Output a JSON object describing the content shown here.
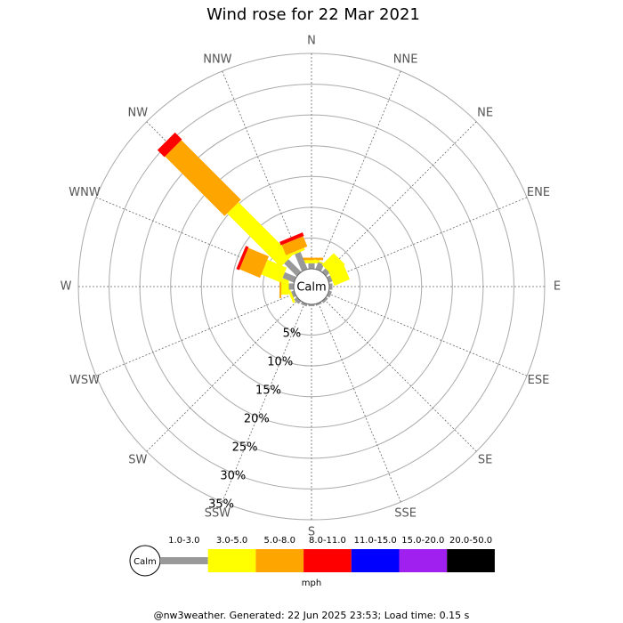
{
  "chart_data": {
    "type": "windrose",
    "title": "Wind rose for 22 Mar 2021",
    "directions": [
      "N",
      "NNE",
      "NE",
      "ENE",
      "E",
      "ESE",
      "SE",
      "SSE",
      "S",
      "SSW",
      "SW",
      "WSW",
      "W",
      "WNW",
      "NW",
      "NNW"
    ],
    "calm_label": "Calm",
    "units": "mph",
    "rlim": [
      0,
      35
    ],
    "rticks": [
      {
        "value": 5,
        "label": "5%"
      },
      {
        "value": 10,
        "label": "10%"
      },
      {
        "value": 15,
        "label": "15%"
      },
      {
        "value": 20,
        "label": "20%"
      },
      {
        "value": 25,
        "label": "25%"
      },
      {
        "value": 30,
        "label": "30%"
      },
      {
        "value": 35,
        "label": "35%"
      }
    ],
    "series": [
      {
        "name": "1.0-3.0",
        "color": "#999999",
        "values": [
          0.9,
          1.2,
          0.8,
          0.6,
          0.5,
          0.5,
          0.4,
          0.3,
          0.3,
          0.4,
          0.6,
          0.5,
          0.8,
          2.0,
          2.9,
          3.0
        ]
      },
      {
        "name": "3.0-5.0",
        "color": "#ffff00",
        "values": [
          0.5,
          0.2,
          2.7,
          2.7,
          0,
          0,
          0,
          0,
          0,
          0,
          0,
          0.4,
          1.2,
          3.4,
          12.3,
          0.4
        ]
      },
      {
        "name": "5.0-8.0",
        "color": "#ffa500",
        "values": [
          0.4,
          0,
          0,
          0,
          0,
          0,
          0,
          0,
          0,
          0,
          0,
          0,
          0.3,
          3.6,
          13.7,
          1.8
        ]
      },
      {
        "name": "8.0-11.0",
        "color": "#ff0000",
        "values": [
          0,
          0,
          0,
          0,
          0,
          0,
          0,
          0,
          0,
          0,
          0,
          0,
          0,
          0.5,
          1.6,
          0.6
        ]
      },
      {
        "name": "11.0-15.0",
        "color": "#0000ff",
        "values": [
          0,
          0,
          0,
          0,
          0,
          0,
          0,
          0,
          0,
          0,
          0,
          0,
          0,
          0,
          0,
          0
        ]
      },
      {
        "name": "15.0-20.0",
        "color": "#a020f0",
        "values": [
          0,
          0,
          0,
          0,
          0,
          0,
          0,
          0,
          0,
          0,
          0,
          0,
          0,
          0,
          0,
          0
        ]
      },
      {
        "name": "20.0-50.0",
        "color": "#000000",
        "values": [
          0,
          0,
          0,
          0,
          0,
          0,
          0,
          0,
          0,
          0,
          0,
          0,
          0,
          0,
          0,
          0
        ]
      }
    ],
    "footer": "@nw3weather. Generated: 22 Jun 2025 23:53; Load time: 0.15 s"
  }
}
